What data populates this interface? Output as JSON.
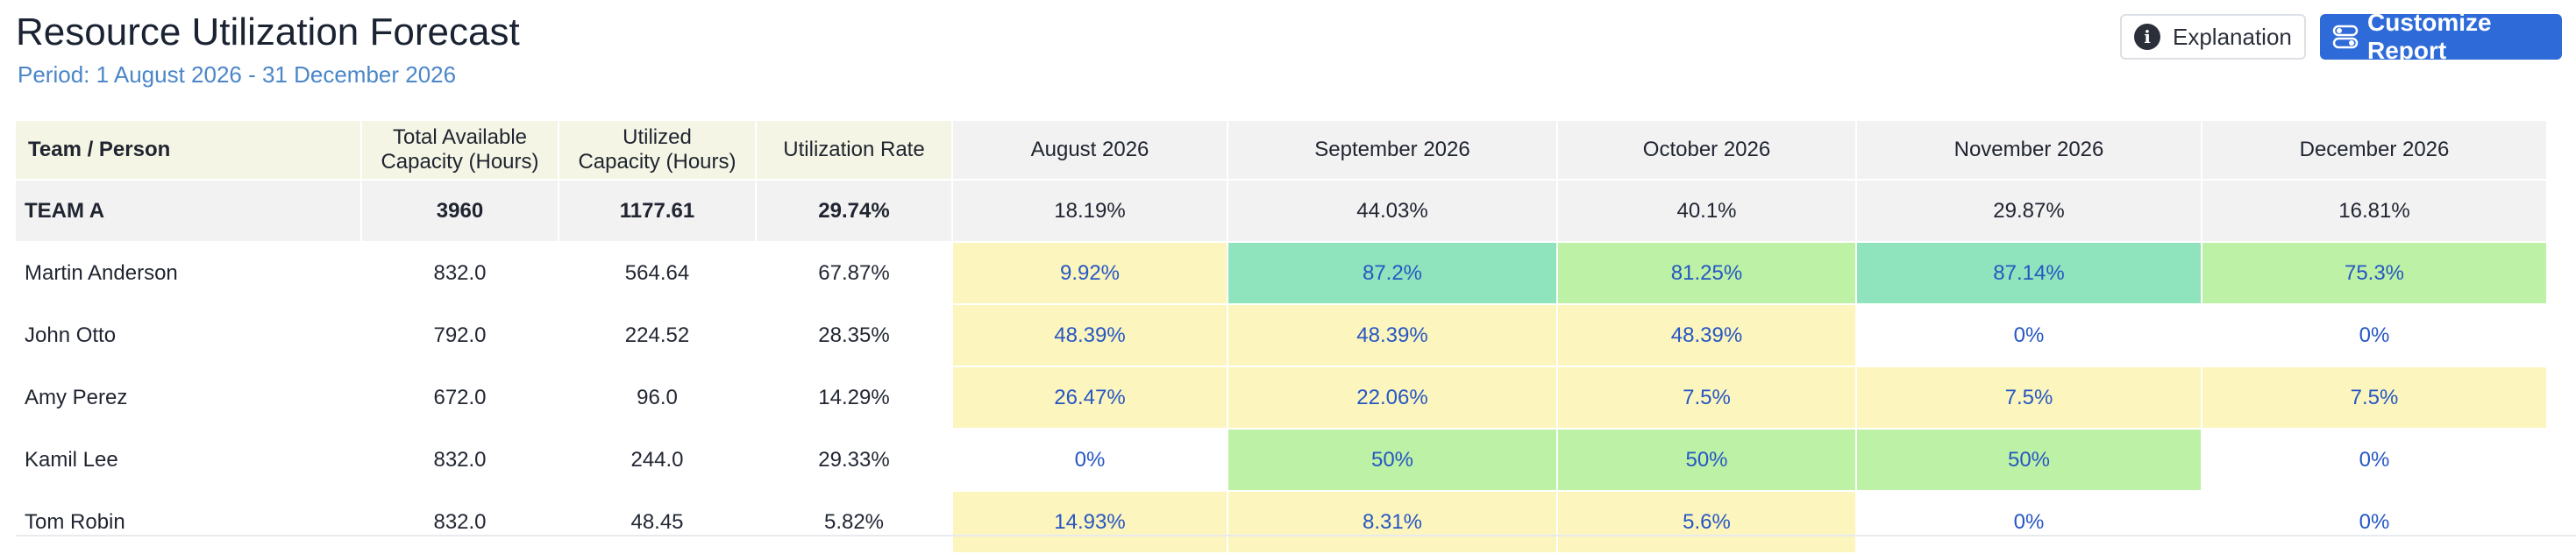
{
  "header": {
    "title": "Resource Utilization Forecast",
    "period": "Period: 1 August 2026 - 31 December 2026",
    "explanation_label": "Explanation",
    "customize_label": "Customize Report"
  },
  "colors": {
    "accent_blue": "#2f6bd8",
    "period_text": "#4a86c8",
    "cell_text_blue": "#2657c4",
    "yellow": "#fcf5bd",
    "light_green": "#bdf1a5",
    "teal_green": "#8fe4bd"
  },
  "table": {
    "columns": {
      "person": "Team / Person",
      "total_line1": "Total Available",
      "total_line2": "Capacity (Hours)",
      "utilized_line1": "Utilized",
      "utilized_line2": "Capacity (Hours)",
      "rate": "Utilization Rate"
    },
    "months": [
      "August 2026",
      "September 2026",
      "October 2026",
      "November 2026",
      "December 2026"
    ],
    "team": {
      "name": "TEAM A",
      "total": "3960",
      "utilized": "1177.61",
      "rate": "29.74%",
      "cells": [
        {
          "value": "18.19%",
          "level": "yellow"
        },
        {
          "value": "44.03%",
          "level": "yellow"
        },
        {
          "value": "40.1%",
          "level": "yellow"
        },
        {
          "value": "29.87%",
          "level": "yellow"
        },
        {
          "value": "16.81%",
          "level": "yellow"
        }
      ]
    },
    "people": [
      {
        "name": "Martin Anderson",
        "total": "832.0",
        "utilized": "564.64",
        "rate": "67.87%",
        "cells": [
          {
            "value": "9.92%",
            "level": "yellow"
          },
          {
            "value": "87.2%",
            "level": "teal"
          },
          {
            "value": "81.25%",
            "level": "lightgreen"
          },
          {
            "value": "87.14%",
            "level": "teal"
          },
          {
            "value": "75.3%",
            "level": "lightgreen"
          }
        ]
      },
      {
        "name": "John Otto",
        "total": "792.0",
        "utilized": "224.52",
        "rate": "28.35%",
        "cells": [
          {
            "value": "48.39%",
            "level": "yellow"
          },
          {
            "value": "48.39%",
            "level": "yellow"
          },
          {
            "value": "48.39%",
            "level": "yellow"
          },
          {
            "value": "0%",
            "level": "none"
          },
          {
            "value": "0%",
            "level": "none"
          }
        ]
      },
      {
        "name": "Amy Perez",
        "total": "672.0",
        "utilized": "96.0",
        "rate": "14.29%",
        "cells": [
          {
            "value": "26.47%",
            "level": "yellow"
          },
          {
            "value": "22.06%",
            "level": "yellow"
          },
          {
            "value": "7.5%",
            "level": "yellow"
          },
          {
            "value": "7.5%",
            "level": "yellow"
          },
          {
            "value": "7.5%",
            "level": "yellow"
          }
        ]
      },
      {
        "name": "Kamil Lee",
        "total": "832.0",
        "utilized": "244.0",
        "rate": "29.33%",
        "cells": [
          {
            "value": "0%",
            "level": "none"
          },
          {
            "value": "50%",
            "level": "lightgreen"
          },
          {
            "value": "50%",
            "level": "lightgreen"
          },
          {
            "value": "50%",
            "level": "lightgreen"
          },
          {
            "value": "0%",
            "level": "none"
          }
        ]
      },
      {
        "name": "Tom Robin",
        "total": "832.0",
        "utilized": "48.45",
        "rate": "5.82%",
        "cells": [
          {
            "value": "14.93%",
            "level": "yellow"
          },
          {
            "value": "8.31%",
            "level": "yellow"
          },
          {
            "value": "5.6%",
            "level": "yellow"
          },
          {
            "value": "0%",
            "level": "none"
          },
          {
            "value": "0%",
            "level": "none"
          }
        ]
      }
    ]
  }
}
